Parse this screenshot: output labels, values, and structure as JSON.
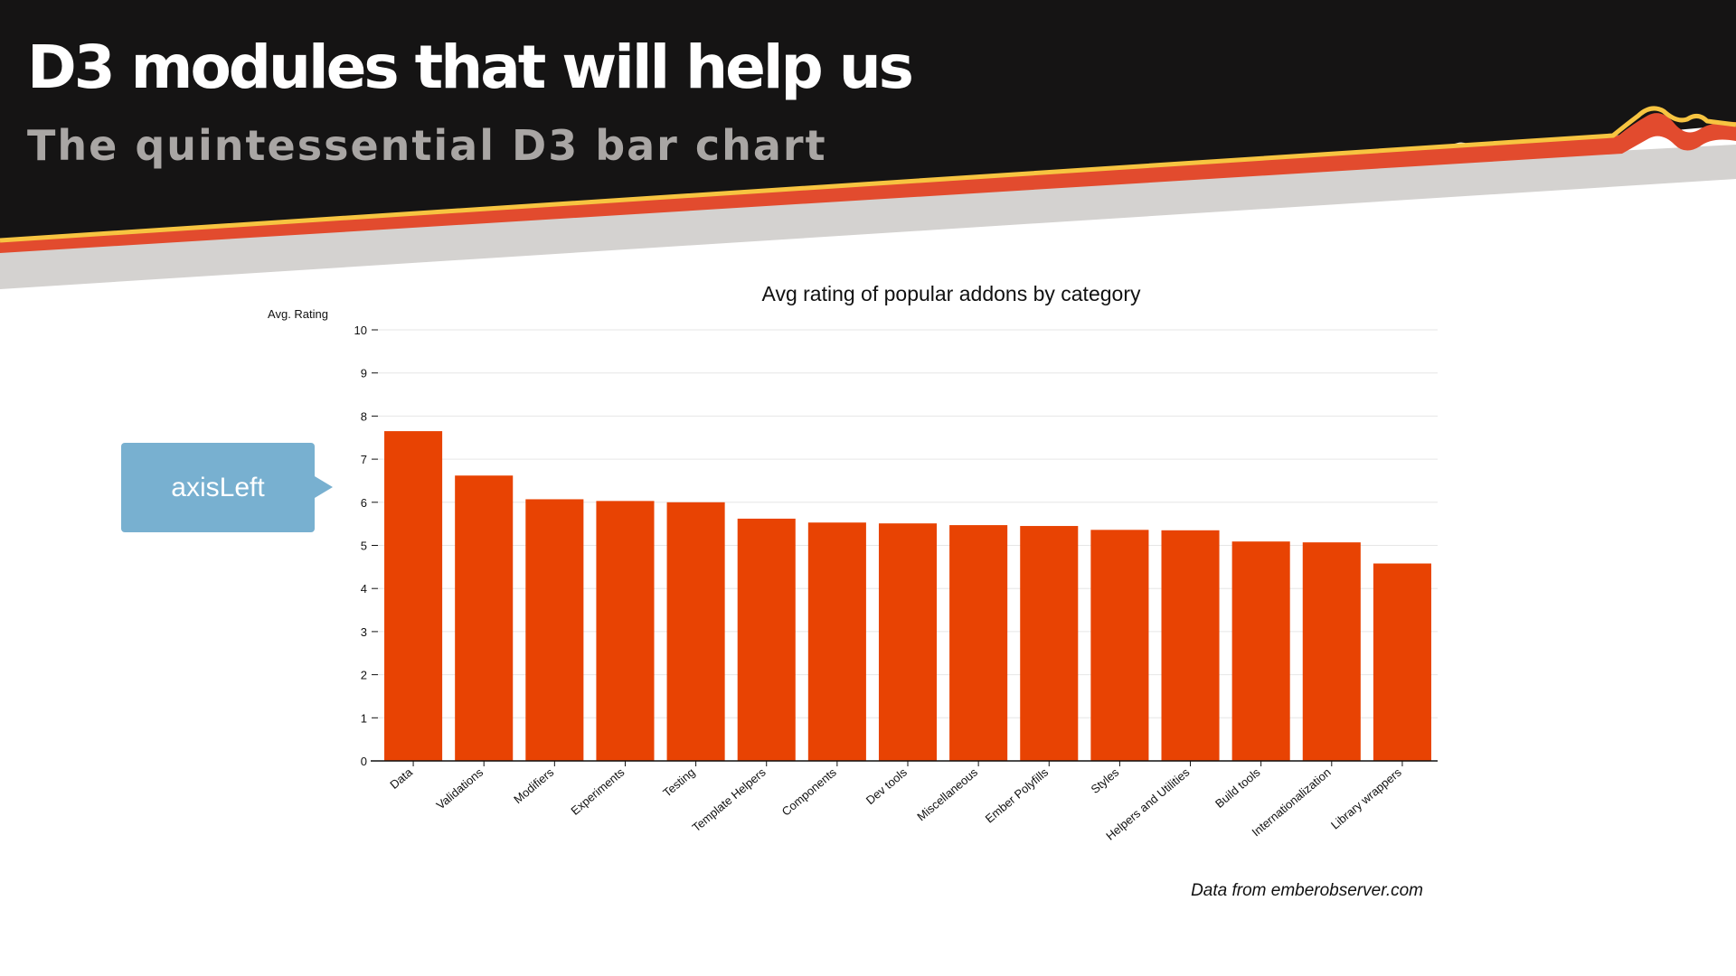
{
  "slide": {
    "title": "D3 modules that will help us",
    "subtitle": "The quintessential D3 bar chart"
  },
  "callout": {
    "label": "axisLeft"
  },
  "source_note": "Data from emberobserver.com",
  "colors": {
    "header_bg": "#151414",
    "stripe_yellow": "#f7c441",
    "stripe_red": "#e24b2e",
    "stripe_gray": "#d4d2d0",
    "bar": "#e84303",
    "callout": "#78b0d0"
  },
  "chart_data": {
    "type": "bar",
    "title": "Avg rating of popular addons by category",
    "ylabel": "Avg. Rating",
    "xlabel": "",
    "ylim": [
      0,
      10
    ],
    "yticks": [
      0,
      1,
      2,
      3,
      4,
      5,
      6,
      7,
      8,
      9,
      10
    ],
    "grid": true,
    "categories": [
      "Data",
      "Validations",
      "Modifiers",
      "Experiments",
      "Testing",
      "Template Helpers",
      "Components",
      "Dev tools",
      "Miscellaneous",
      "Ember Polyfills",
      "Styles",
      "Helpers and Utilities",
      "Build tools",
      "Internationalization",
      "Library wrappers"
    ],
    "values": [
      7.65,
      6.62,
      6.07,
      6.03,
      6.0,
      5.62,
      5.53,
      5.51,
      5.47,
      5.45,
      5.36,
      5.35,
      5.09,
      5.07,
      4.58
    ]
  }
}
